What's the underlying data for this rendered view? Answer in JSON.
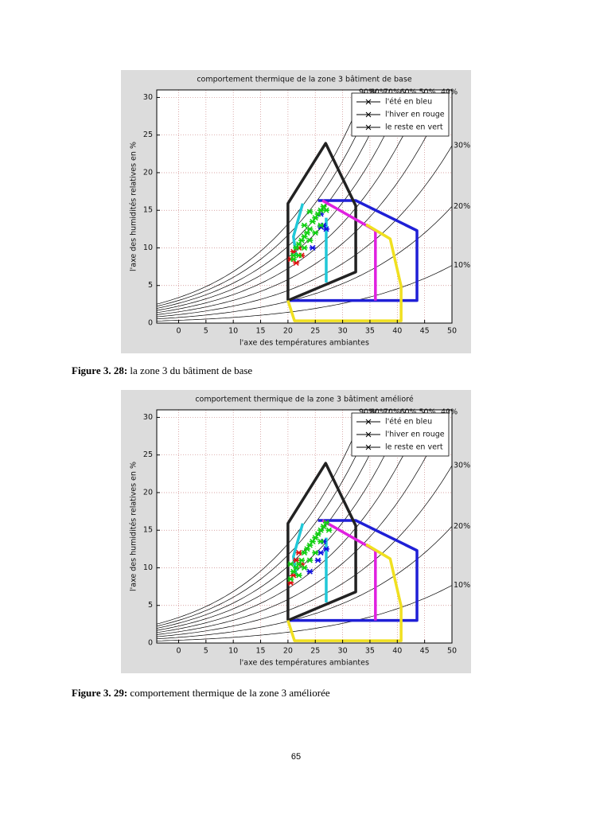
{
  "chart_data": [
    {
      "type": "scatter",
      "title": "comportement thermique de la zone 3 bâtiment de base",
      "xlabel": "l'axe des températures ambiantes",
      "ylabel": "l'axe des humidités relatives en %",
      "xlim": [
        -4,
        50
      ],
      "ylim": [
        0,
        31
      ],
      "xticks": [
        0,
        5,
        10,
        15,
        20,
        25,
        30,
        35,
        40,
        45,
        50
      ],
      "yticks": [
        0,
        5,
        10,
        15,
        20,
        25,
        30
      ],
      "grid": true,
      "legend": "upper right",
      "rh_curves": [
        {
          "value": 10,
          "label": "10%"
        },
        {
          "value": 20,
          "label": "20%"
        },
        {
          "value": 30,
          "label": "30%"
        },
        {
          "value": 40,
          "label": "40%"
        },
        {
          "value": 50,
          "label": "50%"
        },
        {
          "value": 60,
          "label": "60%"
        },
        {
          "value": 70,
          "label": "70%"
        },
        {
          "value": 80,
          "label": "80%"
        },
        {
          "value": 90,
          "label": "90%"
        }
      ],
      "zones": [
        {
          "color": "#1f1fd6",
          "x": [
            20,
            43.6,
            43.6,
            32.4,
            25.5
          ],
          "y": [
            3,
            3,
            12.3,
            16.3,
            16.3
          ]
        },
        {
          "color": "#222222",
          "x": [
            20,
            20,
            26.9,
            32.4,
            32.4,
            20
          ],
          "y": [
            3,
            15.9,
            23.9,
            15.6,
            6.8,
            3
          ]
        },
        {
          "color": "#e020e0",
          "x": [
            26.3,
            36,
            36
          ],
          "y": [
            16.3,
            12.3,
            3
          ]
        },
        {
          "color": "#f0e020",
          "x": [
            34.3,
            38.7,
            40.7,
            40.7,
            21.2,
            20
          ],
          "y": [
            13.1,
            11.2,
            4.9,
            0.3,
            0.3,
            3
          ]
        },
        {
          "color": "#20c8d8",
          "x": [
            22.7,
            21,
            21.5
          ],
          "y": [
            15.9,
            11.5,
            9
          ]
        },
        {
          "color": "#20c8d8",
          "x": [
            27,
            27
          ],
          "y": [
            14,
            5.4
          ]
        }
      ],
      "series": [
        {
          "name": "l'été en bleu",
          "color": "#1010e0",
          "x": [
            26,
            26.5,
            27,
            24.5,
            26
          ],
          "y": [
            12.8,
            13,
            12.5,
            10,
            14.5
          ]
        },
        {
          "name": "l'hiver en rouge",
          "color": "#e01010",
          "x": [
            20.5,
            21,
            21.5,
            22,
            22.5
          ],
          "y": [
            8.5,
            9.5,
            8,
            10,
            9
          ]
        },
        {
          "name": "le reste en vert",
          "color": "#10d010",
          "x": [
            21,
            21.5,
            22,
            22.5,
            23,
            23.5,
            24,
            24.5,
            25,
            25.5,
            26,
            26.5,
            27,
            22,
            23,
            24,
            25,
            26,
            24,
            21,
            23
          ],
          "y": [
            9,
            10,
            10.5,
            11,
            11.5,
            12,
            12.5,
            13.5,
            14,
            14.5,
            15,
            15.5,
            15,
            9,
            10,
            11,
            12,
            13,
            14.8,
            8.5,
            13
          ]
        }
      ]
    },
    {
      "type": "scatter",
      "title": "comportement thermique de la zone 3 bâtiment amélioré",
      "xlabel": "l'axe des températures ambiantes",
      "ylabel": "l'axe des humidités relatives en %",
      "xlim": [
        -4,
        50
      ],
      "ylim": [
        0,
        31
      ],
      "xticks": [
        0,
        5,
        10,
        15,
        20,
        25,
        30,
        35,
        40,
        45,
        50
      ],
      "yticks": [
        0,
        5,
        10,
        15,
        20,
        25,
        30
      ],
      "grid": true,
      "legend": "upper right",
      "rh_curves": [
        {
          "value": 10,
          "label": "10%"
        },
        {
          "value": 20,
          "label": "20%"
        },
        {
          "value": 30,
          "label": "30%"
        },
        {
          "value": 40,
          "label": "40%"
        },
        {
          "value": 50,
          "label": "50%"
        },
        {
          "value": 60,
          "label": "60%"
        },
        {
          "value": 70,
          "label": "70%"
        },
        {
          "value": 80,
          "label": "80%"
        },
        {
          "value": 90,
          "label": "90%"
        }
      ],
      "zones": [
        {
          "color": "#1f1fd6",
          "x": [
            20,
            43.6,
            43.6,
            32.4,
            25.5
          ],
          "y": [
            3,
            3,
            12.3,
            16.3,
            16.3
          ]
        },
        {
          "color": "#222222",
          "x": [
            20,
            20,
            26.9,
            32.4,
            32.4,
            20
          ],
          "y": [
            3,
            15.9,
            23.9,
            15.6,
            6.8,
            3
          ]
        },
        {
          "color": "#e020e0",
          "x": [
            26.3,
            36,
            36
          ],
          "y": [
            16.3,
            12.3,
            3
          ]
        },
        {
          "color": "#f0e020",
          "x": [
            34.3,
            38.7,
            40.7,
            40.7,
            21.2,
            20
          ],
          "y": [
            13.1,
            11.2,
            4.9,
            0.3,
            0.3,
            3
          ]
        },
        {
          "color": "#20c8d8",
          "x": [
            22.7,
            21,
            21.5
          ],
          "y": [
            15.9,
            11.5,
            9
          ]
        },
        {
          "color": "#20c8d8",
          "x": [
            27,
            27
          ],
          "y": [
            14,
            5.4
          ]
        }
      ],
      "series": [
        {
          "name": "l'été en bleu",
          "color": "#1010e0",
          "x": [
            26,
            27,
            26.5,
            24,
            25.5
          ],
          "y": [
            12,
            12.5,
            13.5,
            9.5,
            11
          ]
        },
        {
          "name": "l'hiver en rouge",
          "color": "#e01010",
          "x": [
            21.5,
            22,
            21,
            22.5,
            20.5
          ],
          "y": [
            11,
            12,
            9,
            10.5,
            8
          ]
        },
        {
          "name": "le reste en vert",
          "color": "#10d010",
          "x": [
            20.5,
            21,
            21.5,
            22,
            22.5,
            23,
            23.5,
            24,
            24.5,
            25,
            25.5,
            26,
            26.5,
            27,
            22,
            23,
            24,
            25,
            26,
            27.5,
            20.5
          ],
          "y": [
            8.5,
            9.5,
            10,
            10.5,
            11,
            12,
            12.5,
            13,
            13.5,
            14,
            14.5,
            15,
            15.5,
            16,
            9,
            10,
            11,
            12,
            13.5,
            15,
            10.5
          ]
        }
      ]
    }
  ],
  "captions": [
    {
      "label": "Figure 3. 28:",
      "text": "la zone 3 du bâtiment de base"
    },
    {
      "label": "Figure 3. 29:",
      "text": "comportement thermique de la zone 3 améliorée"
    }
  ],
  "page_number": "65"
}
